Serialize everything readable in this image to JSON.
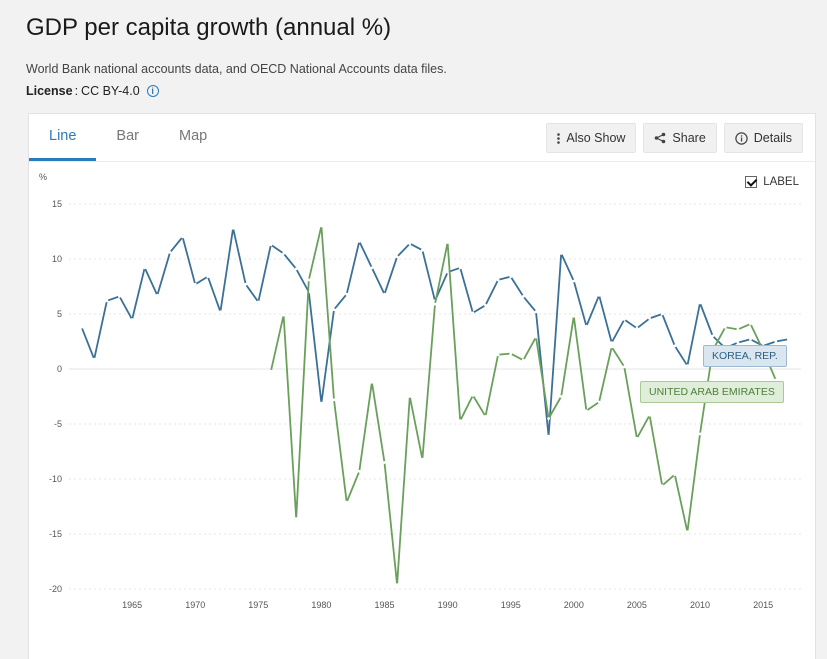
{
  "page": {
    "title": "GDP per capita growth (annual %)",
    "source": "World Bank national accounts data, and OECD National Accounts data files.",
    "license_key": "License",
    "license_value": "CC BY-4.0"
  },
  "tabs": [
    {
      "label": "Line",
      "active": true
    },
    {
      "label": "Bar",
      "active": false
    },
    {
      "label": "Map",
      "active": false
    }
  ],
  "toolbar": {
    "also_show": "Also Show",
    "share": "Share",
    "details": "Details"
  },
  "label_toggle": {
    "text": "LABEL",
    "checked": true
  },
  "colors": {
    "korea": "#3b7097",
    "uae": "#6aa05b",
    "active_tab": "#2b7bb9",
    "grid": "#e6e6e6"
  },
  "chart_data": {
    "type": "line",
    "ylabel": "%",
    "ylim": [
      -20,
      15
    ],
    "yticks": [
      15,
      10,
      5,
      0,
      -5,
      -10,
      -15,
      -20
    ],
    "xlim": [
      1960,
      2018
    ],
    "xticks": [
      1965,
      1970,
      1975,
      1980,
      1985,
      1990,
      1995,
      2000,
      2005,
      2010,
      2015
    ],
    "grid": true,
    "series": [
      {
        "name": "KOREA, REP.",
        "color": "#3b7097",
        "x": [
          1961,
          1962,
          1963,
          1964,
          1965,
          1966,
          1967,
          1968,
          1969,
          1970,
          1971,
          1972,
          1973,
          1974,
          1975,
          1976,
          1977,
          1978,
          1979,
          1980,
          1981,
          1982,
          1983,
          1984,
          1985,
          1986,
          1987,
          1988,
          1989,
          1990,
          1991,
          1992,
          1993,
          1994,
          1995,
          1996,
          1997,
          1998,
          1999,
          2000,
          2001,
          2002,
          2003,
          2004,
          2005,
          2006,
          2007,
          2008,
          2009,
          2010,
          2011,
          2012,
          2013,
          2014,
          2015,
          2016,
          2017
        ],
        "values": [
          3.8,
          0.9,
          6.2,
          6.6,
          4.5,
          9.2,
          6.7,
          10.6,
          12.0,
          7.7,
          8.4,
          5.2,
          12.8,
          7.7,
          6.1,
          11.3,
          10.5,
          9.1,
          7.0,
          -3.1,
          5.4,
          6.8,
          11.6,
          9.2,
          6.8,
          10.2,
          11.4,
          10.8,
          6.2,
          8.8,
          9.2,
          5.1,
          5.8,
          8.1,
          8.4,
          6.6,
          5.2,
          -6.1,
          10.5,
          8.0,
          3.9,
          6.7,
          2.4,
          4.5,
          3.7,
          4.6,
          5.0,
          2.1,
          0.3,
          6.0,
          3.0,
          1.9,
          2.4,
          2.7,
          2.1,
          2.5,
          2.7
        ]
      },
      {
        "name": "UNITED ARAB EMIRATES",
        "color": "#6aa05b",
        "x": [
          1976,
          1977,
          1978,
          1979,
          1980,
          1981,
          1982,
          1983,
          1984,
          1985,
          1986,
          1987,
          1988,
          1989,
          1990,
          1991,
          1992,
          1993,
          1994,
          1995,
          1996,
          1997,
          1998,
          1999,
          2000,
          2001,
          2002,
          2003,
          2004,
          2005,
          2006,
          2007,
          2008,
          2009,
          2010,
          2011,
          2012,
          2013,
          2014,
          2015,
          2016,
          2017
        ],
        "values": [
          -0.2,
          4.9,
          -13.6,
          8.1,
          13.0,
          -2.8,
          -12.1,
          -9.3,
          -1.2,
          -8.5,
          -19.6,
          -2.5,
          -8.2,
          5.9,
          11.5,
          -4.7,
          -2.4,
          -4.3,
          1.3,
          1.4,
          0.8,
          2.9,
          -4.5,
          -2.5,
          4.8,
          -3.8,
          -3.0,
          2.0,
          0.2,
          -6.3,
          -4.2,
          -10.6,
          -9.6,
          -14.8,
          -5.9,
          1.7,
          3.8,
          3.6,
          4.1,
          1.7,
          -1.0,
          null
        ]
      }
    ]
  }
}
